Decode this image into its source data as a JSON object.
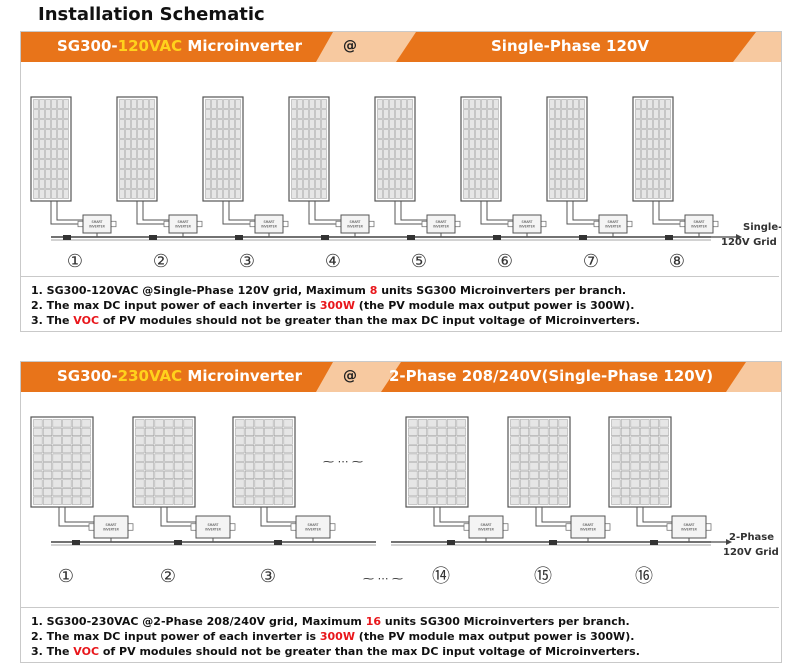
{
  "title": "Installation Schematic",
  "colors": {
    "banner_orange": "#e8741a",
    "banner_band": "#f7c9a0",
    "highlight_amber": "#ffd21c",
    "highlight_red": "#e8161b"
  },
  "panel1": {
    "model_prefix": "SG300-",
    "model_voltage": "120VAC",
    "model_suffix": " Microinverter",
    "at": "@",
    "grid_title": "Single-Phase 120V",
    "grid_label_line1": "Single-Phase",
    "grid_label_line2": "120V Grid",
    "unit_numbers": [
      "①",
      "②",
      "③",
      "④",
      "⑤",
      "⑥",
      "⑦",
      "⑧"
    ],
    "notes": [
      {
        "pre": "1. SG300-120VAC @Single-Phase 120V grid, Maximum ",
        "hl": "8",
        "post": " units SG300 Microinverters  per branch."
      },
      {
        "pre": "2. The max DC input power of each inverter is ",
        "hl": "300W",
        "post": " (the PV module max output power is 300W)."
      },
      {
        "pre": "3. The ",
        "hl": "VOC",
        "post": " of PV modules should not be greater than the max DC input voltage of Microinverters."
      }
    ]
  },
  "panel2": {
    "model_prefix": "SG300-",
    "model_voltage": "230VAC",
    "model_suffix": " Microinverter",
    "at": "@",
    "grid_title": "2-Phase 208/240V(Single-Phase 120V)",
    "grid_label_line1": "2-Phase",
    "grid_label_line2": "120V Grid",
    "ellipsis": "⁓ ⋯ ⁓",
    "unit_numbers": [
      "①",
      "②",
      "③",
      "⑭",
      "⑮",
      "⑯"
    ],
    "notes": [
      {
        "pre": "1. SG300-230VAC @2-Phase 208/240V grid, Maximum ",
        "hl": "16",
        "post": " units SG300 Microinverters per branch."
      },
      {
        "pre": "2. The max DC input power of each inverter is ",
        "hl": "300W",
        "post": " (the PV module max output power is 300W)."
      },
      {
        "pre": "3. The ",
        "hl": "VOC",
        "post": " of PV modules should not be greater than the max DC input voltage of Microinverters."
      }
    ]
  },
  "inverter_label_line1": "SMART",
  "inverter_label_line2": "INVERTER"
}
